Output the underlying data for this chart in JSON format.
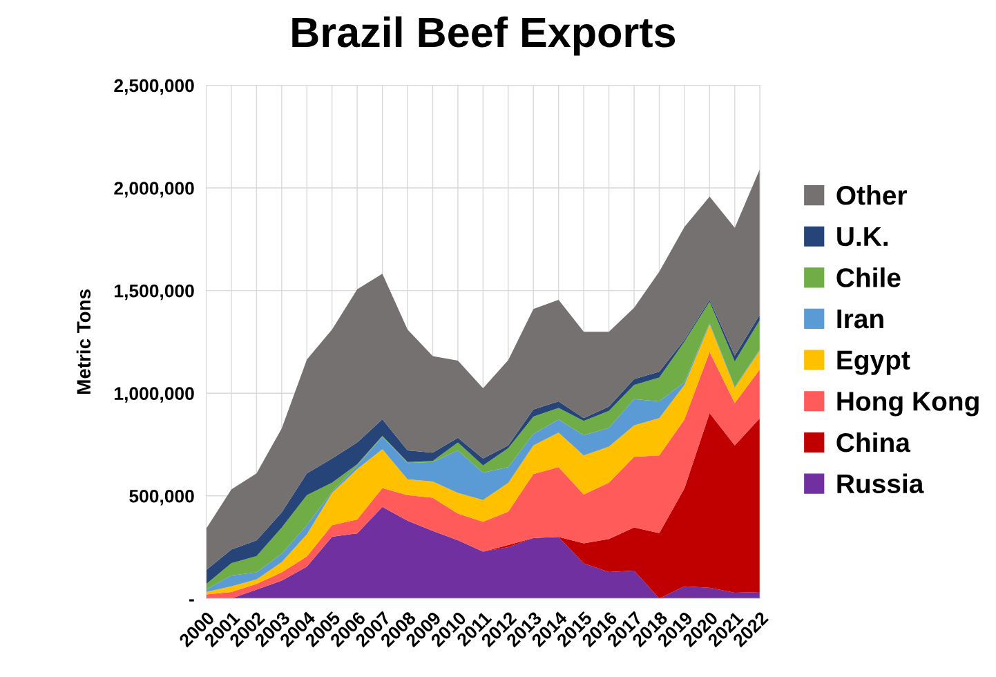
{
  "chart_data": {
    "type": "area",
    "stacked": true,
    "title": "Brazil Beef Exports",
    "ylabel": "Metric Tons",
    "categories": [
      "2000",
      "2001",
      "2002",
      "2003",
      "2004",
      "2005",
      "2006",
      "2007",
      "2008",
      "2009",
      "2010",
      "2011",
      "2012",
      "2013",
      "2014",
      "2015",
      "2016",
      "2017",
      "2018",
      "2019",
      "2020",
      "2021",
      "2022"
    ],
    "ylim": [
      0,
      2500000
    ],
    "yticks": [
      {
        "value": 0,
        "label": "-"
      },
      {
        "value": 500000,
        "label": "500,000"
      },
      {
        "value": 1000000,
        "label": "1,000,000"
      },
      {
        "value": 1500000,
        "label": "1,500,000"
      },
      {
        "value": 2000000,
        "label": "2,000,000"
      },
      {
        "value": 2500000,
        "label": "2,500,000"
      }
    ],
    "grid": true,
    "legend": "right",
    "series": [
      {
        "name": "Russia",
        "color": "#7030a0",
        "values": [
          0,
          0,
          43000,
          87000,
          155000,
          301000,
          317000,
          446000,
          379000,
          329000,
          284000,
          228000,
          250000,
          295000,
          300000,
          171000,
          129000,
          136000,
          0,
          59000,
          52000,
          28000,
          31000
        ]
      },
      {
        "name": "China",
        "color": "#c00000",
        "values": [
          0,
          0,
          0,
          0,
          0,
          0,
          0,
          0,
          0,
          0,
          0,
          0,
          10000,
          0,
          0,
          98000,
          161000,
          210000,
          318000,
          477000,
          851000,
          718000,
          848000
        ]
      },
      {
        "name": "Hong Kong",
        "color": "#ff5b5b",
        "values": [
          20000,
          31000,
          28000,
          40000,
          50000,
          56000,
          68000,
          92000,
          124000,
          162000,
          129000,
          146000,
          163000,
          311000,
          340000,
          238000,
          274000,
          344000,
          379000,
          336000,
          298000,
          206000,
          238000
        ]
      },
      {
        "name": "Egypt",
        "color": "#ffc000",
        "values": [
          11000,
          28000,
          22000,
          50000,
          107000,
          157000,
          245000,
          189000,
          78000,
          79000,
          101000,
          106000,
          140000,
          140000,
          168000,
          190000,
          176000,
          153000,
          182000,
          168000,
          134000,
          74000,
          92000
        ]
      },
      {
        "name": "Iran",
        "color": "#5b9bd5",
        "values": [
          12000,
          53000,
          34000,
          40000,
          45000,
          6000,
          18000,
          61000,
          79000,
          95000,
          207000,
          133000,
          77000,
          55000,
          64000,
          98000,
          91000,
          128000,
          81000,
          14000,
          7000,
          4000,
          6000
        ]
      },
      {
        "name": "Chile",
        "color": "#70ad47",
        "values": [
          27000,
          60000,
          79000,
          128000,
          146000,
          44000,
          6000,
          4000,
          5000,
          5000,
          39000,
          35000,
          92000,
          85000,
          56000,
          70000,
          83000,
          69000,
          116000,
          197000,
          104000,
          125000,
          142000
        ]
      },
      {
        "name": "U.K.",
        "color": "#264478",
        "values": [
          68000,
          66000,
          77000,
          74000,
          106000,
          118000,
          106000,
          81000,
          56000,
          40000,
          23000,
          34000,
          14000,
          35000,
          32000,
          14000,
          21000,
          29000,
          29000,
          9000,
          9000,
          27000,
          27000
        ]
      },
      {
        "name": "Other",
        "color": "#767171",
        "values": [
          202000,
          293000,
          326000,
          409000,
          555000,
          628000,
          746000,
          709000,
          589000,
          471000,
          376000,
          342000,
          415000,
          489000,
          495000,
          420000,
          364000,
          347000,
          487000,
          550000,
          503000,
          624000,
          709000
        ]
      }
    ]
  }
}
